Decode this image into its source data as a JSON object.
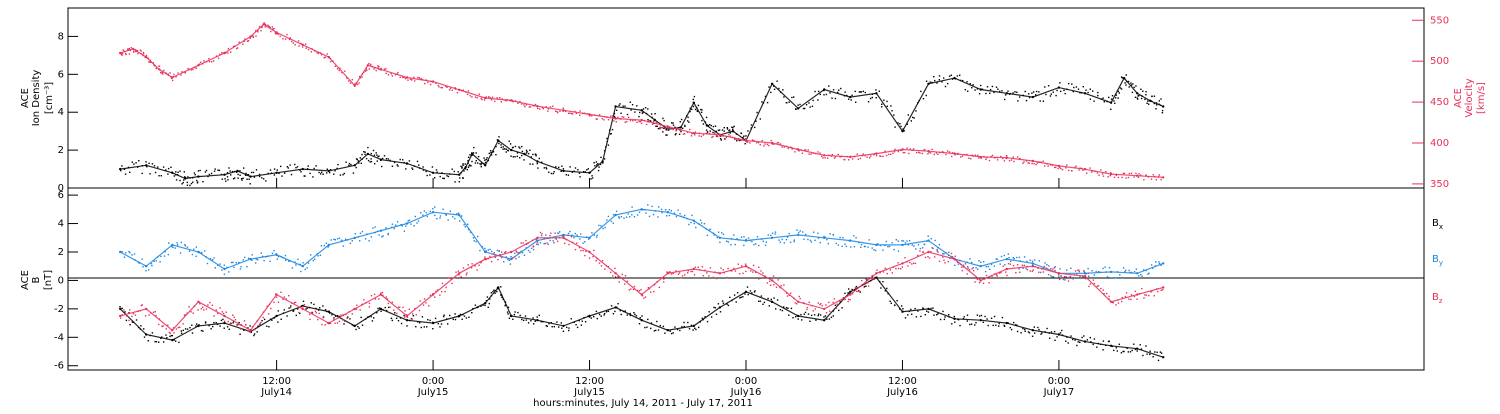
{
  "chart_data": [
    {
      "type": "scatter",
      "panel": "top",
      "ylabel_lines": [
        "ACE",
        "Ion Density",
        "[cm⁻³]"
      ],
      "y2label_lines": [
        "ACE",
        "Velocity",
        "[km/s]"
      ],
      "ylim": [
        0,
        9.5
      ],
      "y_ticks": [
        0,
        2,
        4,
        6,
        8
      ],
      "y2lim": [
        345,
        565
      ],
      "y2_ticks": [
        350,
        400,
        450,
        500,
        550
      ],
      "colors": {
        "density": "#000000",
        "velocity": "#e8305a"
      },
      "series": [
        {
          "name": "Ion Density",
          "axis": "left",
          "unit_hours": true,
          "x": [
            0,
            2,
            4,
            5,
            6,
            8,
            9,
            10,
            12,
            14,
            16,
            18,
            19,
            20,
            22,
            24,
            26,
            26.5,
            27,
            28,
            29,
            30,
            31,
            32,
            34,
            36,
            37,
            38,
            40,
            41,
            42,
            43,
            44,
            45,
            46,
            47,
            48,
            50,
            52,
            54,
            56,
            58,
            60,
            62,
            64,
            66,
            68,
            70,
            72,
            74,
            76,
            77,
            78,
            79,
            80
          ],
          "values": [
            1.0,
            1.2,
            0.8,
            0.5,
            0.6,
            0.7,
            0.9,
            0.6,
            0.8,
            1.0,
            0.9,
            1.2,
            1.8,
            1.5,
            1.3,
            0.8,
            0.7,
            1.1,
            1.8,
            1.2,
            2.5,
            2.0,
            1.8,
            1.4,
            0.9,
            0.8,
            1.4,
            4.3,
            4.1,
            3.6,
            3.1,
            3.2,
            4.5,
            3.3,
            2.8,
            3.0,
            2.5,
            5.5,
            4.2,
            5.2,
            4.8,
            5.0,
            3.0,
            5.5,
            5.8,
            5.2,
            5.0,
            4.8,
            5.3,
            5.0,
            4.5,
            5.8,
            5.0,
            4.6,
            4.3
          ]
        },
        {
          "name": "Velocity",
          "axis": "right",
          "x": [
            0,
            1,
            2,
            3,
            4,
            6,
            8,
            10,
            11,
            12,
            14,
            16,
            18,
            19,
            20,
            22,
            24,
            26,
            28,
            30,
            32,
            34,
            36,
            38,
            40,
            42,
            44,
            46,
            48,
            50,
            52,
            54,
            56,
            58,
            60,
            62,
            64,
            66,
            68,
            70,
            72,
            74,
            76,
            78,
            80
          ],
          "values": [
            510,
            515,
            505,
            490,
            480,
            495,
            510,
            530,
            545,
            535,
            520,
            505,
            470,
            495,
            490,
            480,
            475,
            465,
            455,
            452,
            445,
            440,
            435,
            430,
            428,
            420,
            412,
            410,
            403,
            400,
            392,
            385,
            383,
            387,
            392,
            390,
            387,
            383,
            382,
            378,
            372,
            368,
            362,
            360,
            358
          ]
        }
      ]
    },
    {
      "type": "scatter",
      "panel": "bottom",
      "ylabel_lines": [
        "ACE",
        "B",
        "[nT]"
      ],
      "ylim": [
        -6.3,
        6.5
      ],
      "y_ticks": [
        -6,
        -4,
        -2,
        0,
        2,
        4,
        6
      ],
      "colors": {
        "Bx": "#000000",
        "By": "#1a86e0",
        "Bz": "#e8305a"
      },
      "legend": [
        "Bx",
        "By",
        "Bz"
      ],
      "series": [
        {
          "name": "Bx",
          "x": [
            0,
            2,
            4,
            6,
            8,
            10,
            12,
            14,
            16,
            18,
            20,
            22,
            24,
            26,
            28,
            29,
            30,
            32,
            34,
            36,
            38,
            40,
            42,
            44,
            46,
            48,
            50,
            52,
            54,
            56,
            58,
            60,
            62,
            64,
            66,
            68,
            70,
            72,
            74,
            76,
            78,
            80
          ],
          "values": [
            -2.0,
            -3.8,
            -4.2,
            -3.2,
            -3.0,
            -3.6,
            -2.5,
            -1.8,
            -2.2,
            -3.2,
            -2.0,
            -2.8,
            -3.0,
            -2.5,
            -1.6,
            -0.5,
            -2.5,
            -2.8,
            -3.2,
            -2.5,
            -1.9,
            -2.8,
            -3.5,
            -3.2,
            -1.9,
            -0.8,
            -1.5,
            -2.5,
            -2.8,
            -0.8,
            0.2,
            -2.2,
            -2.0,
            -2.7,
            -2.8,
            -3.0,
            -3.5,
            -3.8,
            -4.3,
            -4.6,
            -4.8,
            -5.4
          ]
        },
        {
          "name": "By",
          "x": [
            0,
            2,
            4,
            6,
            8,
            10,
            12,
            14,
            16,
            18,
            20,
            22,
            24,
            26,
            28,
            30,
            32,
            34,
            36,
            38,
            40,
            42,
            44,
            46,
            48,
            50,
            52,
            54,
            56,
            58,
            60,
            62,
            64,
            66,
            68,
            70,
            72,
            74,
            76,
            78,
            80
          ],
          "values": [
            2.0,
            1.0,
            2.5,
            2.0,
            0.8,
            1.5,
            1.8,
            1.0,
            2.5,
            3.0,
            3.5,
            4.0,
            4.8,
            4.6,
            2.0,
            1.5,
            2.8,
            3.2,
            3.0,
            4.6,
            5.0,
            4.8,
            4.2,
            3.0,
            2.8,
            3.0,
            3.2,
            3.0,
            2.8,
            2.5,
            2.5,
            2.8,
            1.5,
            1.0,
            1.5,
            1.2,
            0.5,
            0.5,
            0.6,
            0.5,
            1.2
          ]
        },
        {
          "name": "Bz",
          "x": [
            0,
            2,
            4,
            6,
            8,
            10,
            12,
            14,
            16,
            18,
            20,
            22,
            24,
            26,
            28,
            30,
            32,
            34,
            36,
            38,
            40,
            42,
            44,
            46,
            48,
            50,
            52,
            54,
            56,
            58,
            60,
            62,
            64,
            66,
            68,
            70,
            72,
            74,
            76,
            78,
            80
          ],
          "values": [
            -2.5,
            -2.0,
            -3.5,
            -1.5,
            -2.5,
            -3.5,
            -1.0,
            -2.0,
            -3.0,
            -2.0,
            -1.0,
            -2.5,
            -1.0,
            0.5,
            1.5,
            2.0,
            3.0,
            3.0,
            2.0,
            0.5,
            -1.0,
            0.5,
            0.8,
            0.5,
            1.0,
            0.0,
            -1.5,
            -2.0,
            -1.0,
            0.5,
            1.2,
            2.0,
            1.5,
            0.0,
            0.8,
            1.0,
            0.5,
            0.3,
            -1.5,
            -1.0,
            -0.5
          ]
        }
      ]
    }
  ],
  "x_axis": {
    "range_hours": [
      -4,
      100
    ],
    "ticks": [
      {
        "hour": 12,
        "time": "12:00",
        "date": "July14"
      },
      {
        "hour": 24,
        "time": "0:00",
        "date": "July15"
      },
      {
        "hour": 36,
        "time": "12:00",
        "date": "July15"
      },
      {
        "hour": 48,
        "time": "0:00",
        "date": "July16"
      },
      {
        "hour": 60,
        "time": "12:00",
        "date": "July16"
      },
      {
        "hour": 72,
        "time": "0:00",
        "date": "July17"
      }
    ],
    "label": "hours:minutes, July 14, 2011 - July 17, 2011"
  },
  "legend": {
    "bx_base": "B",
    "bx_sub": "x",
    "by_base": "B",
    "by_sub": "y",
    "bz_base": "B",
    "bz_sub": "z"
  },
  "top_left_label": {
    "line1": "ACE",
    "line2": "Ion Density",
    "line3": "[cm⁻³]"
  },
  "top_right_label": {
    "line1": "ACE",
    "line2": "Velocity",
    "line3": "[km/s]"
  },
  "bottom_left_label": {
    "line1": "ACE",
    "line2": "B",
    "line3": "[nT]"
  }
}
